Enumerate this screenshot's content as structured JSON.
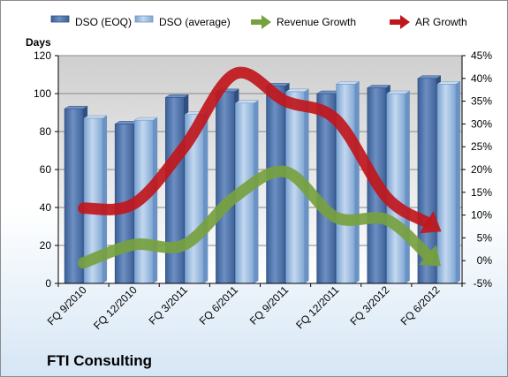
{
  "chart_data": {
    "type": "bar",
    "title": "",
    "company": "FTI Consulting",
    "left_axis_label": "Days",
    "left_axis": {
      "min": 0,
      "max": 120,
      "step": 20,
      "ticks": [
        "0",
        "20",
        "40",
        "60",
        "80",
        "100",
        "120"
      ]
    },
    "right_axis": {
      "min": -5,
      "max": 45,
      "step": 5,
      "ticks": [
        "-5%",
        "0%",
        "5%",
        "10%",
        "15%",
        "20%",
        "25%",
        "30%",
        "35%",
        "40%",
        "45%"
      ]
    },
    "categories": [
      "FQ 9/2010",
      "FQ 12/2010",
      "FQ 3/2011",
      "FQ 6/2011",
      "FQ 9/2011",
      "FQ 12/2011",
      "FQ 3/2012",
      "FQ 6/2012"
    ],
    "bar_series": [
      {
        "name": "DSO (EOQ)",
        "color": "#4f72a8",
        "values": [
          92,
          84,
          98,
          101,
          104,
          100,
          103,
          108
        ]
      },
      {
        "name": "DSO (average)",
        "color": "#95b6dd",
        "values": [
          87,
          86,
          89,
          95,
          101,
          105,
          100,
          105
        ]
      }
    ],
    "line_series": [
      {
        "name": "Revenue Growth",
        "color": "#77a13f",
        "axis": "right",
        "values": [
          -0.5,
          3.5,
          3.5,
          14,
          19.5,
          9.5,
          9,
          -0.5
        ]
      },
      {
        "name": "AR Growth",
        "color": "#c0171c",
        "axis": "right",
        "values": [
          11.5,
          12.5,
          25,
          41,
          35,
          31,
          14,
          7
        ]
      }
    ],
    "grid": true,
    "legend_position": "top"
  }
}
